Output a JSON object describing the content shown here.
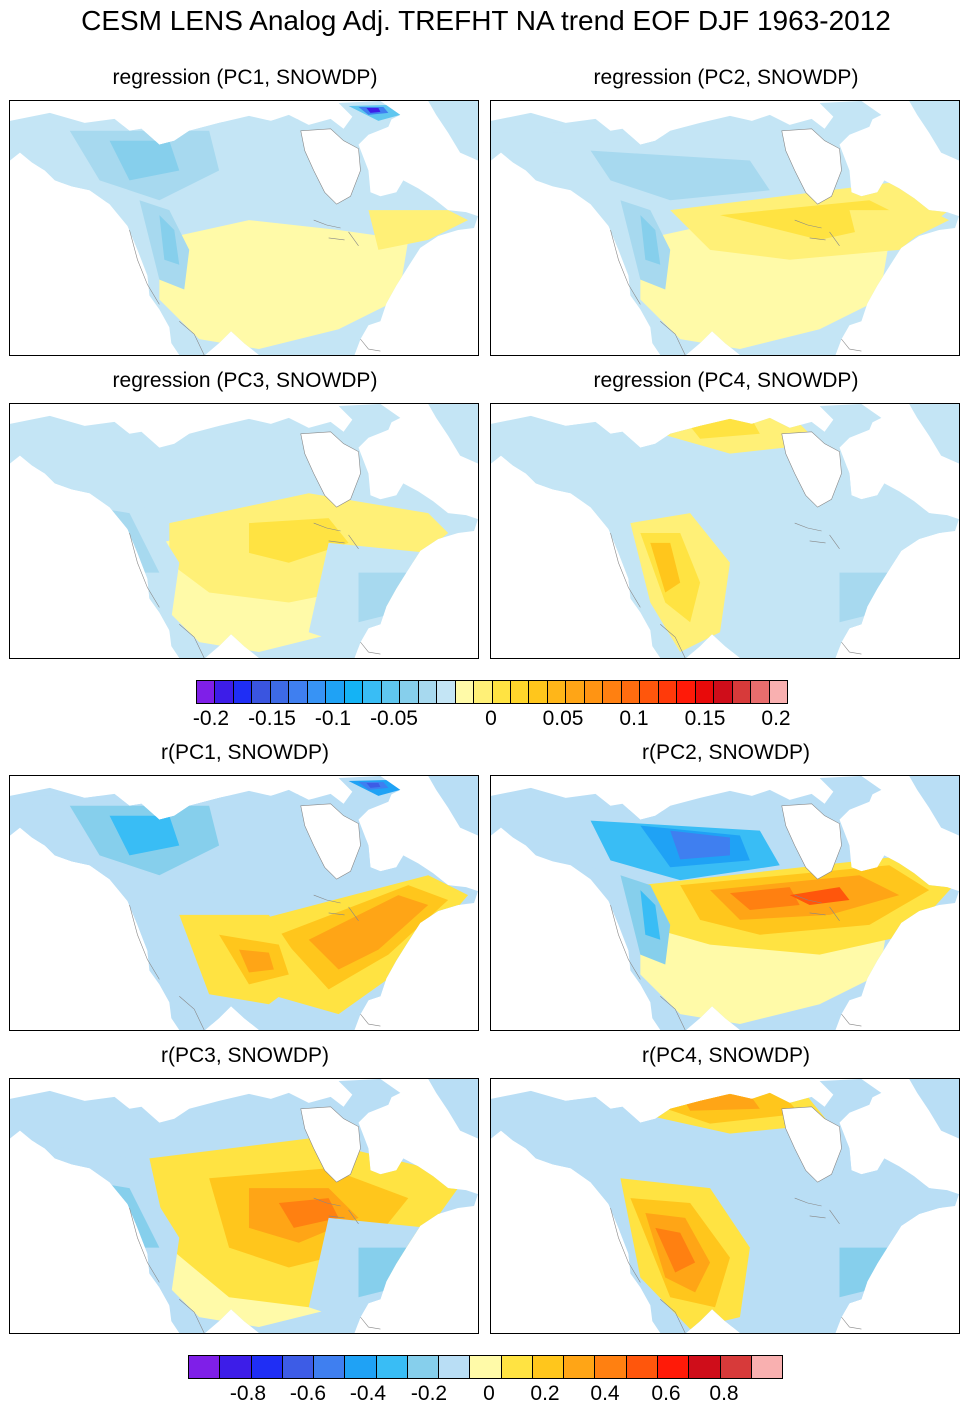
{
  "title": "CESM LENS Analog Adj. TREFHT NA trend EOF DJF 1963-2012",
  "panels": [
    {
      "title": "regression (PC1, SNOWDP)",
      "palette": "reg",
      "blob_keys": [
        "neutral-pos",
        "blue-north",
        "blue-rockies",
        "dark-blue-nw",
        "ne-yellow"
      ]
    },
    {
      "title": "regression (PC2, SNOWDP)",
      "palette": "reg",
      "blob_keys": [
        "neutral-pos",
        "blue-canada",
        "yellow-east",
        "blue-rockies",
        "ne-yellow"
      ]
    },
    {
      "title": "regression (PC3, SNOWDP)",
      "palette": "reg",
      "blob_keys": [
        "neutral-pos",
        "yellow-center",
        "blue-west",
        "blue-east"
      ]
    },
    {
      "title": "regression (PC4, SNOWDP)",
      "palette": "reg",
      "blob_keys": [
        "neutral-neg",
        "yellow-arctic",
        "orange-west",
        "blue-east"
      ]
    },
    {
      "title": "r(PC1, SNOWDP)",
      "palette": "corr",
      "blob_keys": [
        "neutral-neg",
        "blue-north",
        "orange-se",
        "orange-plains",
        "dark-blue-nw"
      ]
    },
    {
      "title": "r(PC2, SNOWDP)",
      "palette": "corr",
      "blob_keys": [
        "neutral-pos",
        "blue-canada-strong",
        "orange-east-strong",
        "blue-rockies"
      ]
    },
    {
      "title": "r(PC3, SNOWDP)",
      "palette": "corr",
      "blob_keys": [
        "neutral-pos",
        "orange-center",
        "blue-west",
        "blue-east"
      ]
    },
    {
      "title": "r(PC4, SNOWDP)",
      "palette": "corr",
      "blob_keys": [
        "neutral-neg",
        "orange-arctic",
        "orange-west-strong",
        "blue-east"
      ]
    }
  ],
  "colorbars": [
    {
      "name": "regression",
      "colors": [
        "#7f1fe8",
        "#3d1de8",
        "#1f2ef5",
        "#3a55e0",
        "#3d6ae6",
        "#3f7ff0",
        "#3793f5",
        "#1fa2f5",
        "#14b3f5",
        "#39bdf5",
        "#5fc6ef",
        "#86cfec",
        "#a7d9ef",
        "#c4e5f5",
        "#fffaa8",
        "#fff077",
        "#ffe342",
        "#ffd62b",
        "#ffc61c",
        "#ffb619",
        "#ffa516",
        "#ff9413",
        "#ff8011",
        "#ff6c0f",
        "#ff560c",
        "#ff3a0a",
        "#ff1a08",
        "#e80a0a",
        "#cf0d1a",
        "#d73a3a",
        "#e86d6d",
        "#f9b0b0"
      ],
      "ticks": [
        "-0.2",
        "-0.15",
        "-0.1",
        "-0.05",
        "0",
        "0.05",
        "0.1",
        "0.15",
        "0.2"
      ]
    },
    {
      "name": "correlation",
      "colors": [
        "#7f1fe8",
        "#3d1de8",
        "#1f2ef5",
        "#3d5ce6",
        "#3f7ff0",
        "#1fa2f5",
        "#39bdf5",
        "#86cfec",
        "#b9def5",
        "#fffaa8",
        "#ffe342",
        "#ffc61c",
        "#ffa516",
        "#ff8011",
        "#ff560c",
        "#ff1a08",
        "#cf0d1a",
        "#d73a3a",
        "#f9b0b0"
      ],
      "ticks": [
        "-0.8",
        "-0.6",
        "-0.4",
        "-0.2",
        "0",
        "0.2",
        "0.4",
        "0.6",
        "0.8"
      ]
    }
  ]
}
